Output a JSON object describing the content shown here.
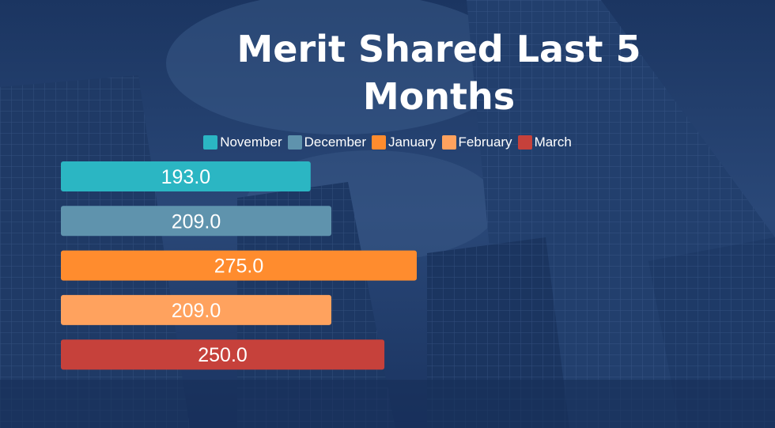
{
  "colors": {
    "background": "#1c3763",
    "November": "#2bb6c3",
    "December": "#5f93ad",
    "January": "#ff8c2e",
    "February": "#ffa25e",
    "March": "#c6413b"
  },
  "chart_data": {
    "type": "bar",
    "orientation": "horizontal",
    "title": "Merit Shared Last 5 Months",
    "series": [
      {
        "name": "November",
        "values": [
          193.0
        ],
        "label": "193.0",
        "color": "#2bb6c3"
      },
      {
        "name": "December",
        "values": [
          209.0
        ],
        "label": "209.0",
        "color": "#5f93ad"
      },
      {
        "name": "January",
        "values": [
          275.0
        ],
        "label": "275.0",
        "color": "#ff8c2e"
      },
      {
        "name": "February",
        "values": [
          209.0
        ],
        "label": "209.0",
        "color": "#ffa25e"
      },
      {
        "name": "March",
        "values": [
          250.0
        ],
        "label": "250.0",
        "color": "#c6413b"
      }
    ],
    "xlim": [
      0,
      275.0
    ],
    "grid": false,
    "legend": "top-center"
  }
}
